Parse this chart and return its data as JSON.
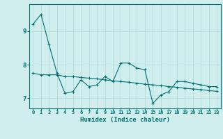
{
  "xlabel": "Humidex (Indice chaleur)",
  "x": [
    0,
    1,
    2,
    3,
    4,
    5,
    6,
    7,
    8,
    9,
    10,
    11,
    12,
    13,
    14,
    15,
    16,
    17,
    18,
    19,
    20,
    21,
    22,
    23
  ],
  "y_line1": [
    9.2,
    9.5,
    8.6,
    7.75,
    7.15,
    7.2,
    7.55,
    7.35,
    7.4,
    7.65,
    7.5,
    8.05,
    8.05,
    7.9,
    7.85,
    6.85,
    7.1,
    7.2,
    7.5,
    7.5,
    7.45,
    7.4,
    7.35,
    7.35
  ],
  "y_line2": [
    7.75,
    7.7,
    7.7,
    7.7,
    7.65,
    7.65,
    7.62,
    7.6,
    7.58,
    7.55,
    7.52,
    7.5,
    7.48,
    7.45,
    7.42,
    7.4,
    7.38,
    7.35,
    7.33,
    7.3,
    7.28,
    7.26,
    7.23,
    7.21
  ],
  "line_color": "#007070",
  "background_color": "#d0eeee",
  "grid_color": "#b0d8d8",
  "tick_color": "#007070",
  "ylim": [
    6.7,
    9.8
  ],
  "yticks": [
    7,
    8,
    9
  ],
  "xlim": [
    -0.5,
    23.5
  ]
}
